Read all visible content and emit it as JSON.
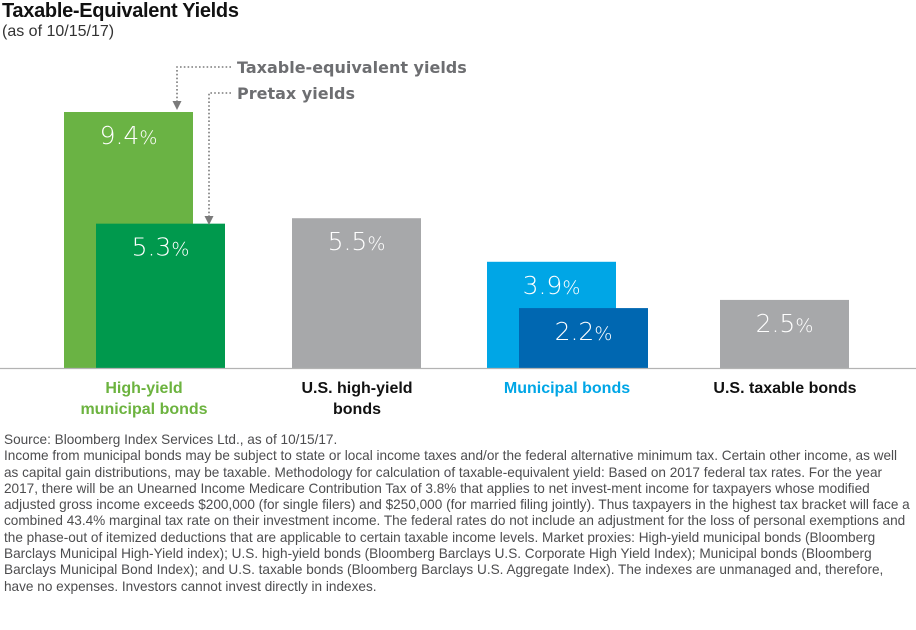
{
  "header": {
    "title": "Taxable-Equivalent Yields",
    "subtitle": "(as of 10/15/17)"
  },
  "chart_data": {
    "type": "bar",
    "title": "Taxable-Equivalent Yields",
    "subtitle": "(as of 10/15/17)",
    "xlabel": "",
    "ylabel": "",
    "ylim": [
      0,
      9.4
    ],
    "grid": false,
    "categories": [
      "High-yield municipal bonds",
      "U.S. high-yield bonds",
      "Municipal bonds",
      "U.S. taxable bonds"
    ],
    "category_label_lines": [
      [
        "High-yield",
        "municipal bonds"
      ],
      [
        "U.S. high-yield",
        "bonds"
      ],
      [
        "Municipal bonds"
      ],
      [
        "U.S. taxable bonds"
      ]
    ],
    "category_label_colors": [
      "#6cb33f",
      "#111111",
      "#00a6e6",
      "#111111"
    ],
    "legend": {
      "placement": "top",
      "entries": [
        "Taxable-equivalent yields",
        "Pretax yields"
      ]
    },
    "bars": [
      {
        "category": "High-yield municipal bonds",
        "series": "Taxable-equivalent yields",
        "value": 9.4,
        "label": "9.4",
        "color": "#6ab344",
        "slot": 0,
        "offset": 0
      },
      {
        "category": "High-yield municipal bonds",
        "series": "Pretax yields",
        "value": 5.3,
        "label": "5.3",
        "color": "#00994d",
        "slot": 0,
        "offset": 1
      },
      {
        "category": "U.S. high-yield bonds",
        "series": "Yield",
        "value": 5.5,
        "label": "5.5",
        "color": "#a7a8aa",
        "slot": 1,
        "offset": 0
      },
      {
        "category": "Municipal bonds",
        "series": "Taxable-equivalent yields",
        "value": 3.9,
        "label": "3.9",
        "color": "#00a6e6",
        "slot": 2,
        "offset": 0
      },
      {
        "category": "Municipal bonds",
        "series": "Pretax yields",
        "value": 2.2,
        "label": "2.2",
        "color": "#0067b1",
        "slot": 2,
        "offset": 1
      },
      {
        "category": "U.S. taxable bonds",
        "series": "Yield",
        "value": 2.5,
        "label": "2.5",
        "color": "#a7a8aa",
        "slot": 3,
        "offset": 0
      }
    ],
    "value_suffix": "%"
  },
  "footnote": {
    "source": "Source: Bloomberg Index Services Ltd., as of 10/15/17.",
    "body": "Income from municipal bonds may be subject to state or local income taxes and/or the federal alternative minimum tax. Certain other income, as well as capital gain distributions, may be taxable. Methodology for calculation of taxable-equivalent yield: Based on 2017 federal tax rates. For the year 2017, there will be an Unearned Income Medicare Contribution Tax of 3.8% that applies to net invest-ment income for taxpayers whose modified adjusted gross income exceeds $200,000 (for single filers) and $250,000 (for married filing jointly). Thus taxpayers in the highest tax bracket will face a combined 43.4% marginal tax rate on their investment income. The federal rates do not include an adjustment for the loss of personal exemptions and the phase-out of itemized deductions that are applicable to certain taxable income levels. Market proxies: High-yield municipal bonds (Bloomberg Barclays Municipal High-Yield index); U.S. high-yield bonds (Bloomberg Barclays U.S. Corporate High Yield Index); Municipal bonds (Bloomberg Barclays Municipal Bond Index); and U.S. taxable bonds (Bloomberg Barclays U.S. Aggregate Index). The indexes are unmanaged and, therefore, have no expenses. Investors cannot invest directly in indexes."
  }
}
